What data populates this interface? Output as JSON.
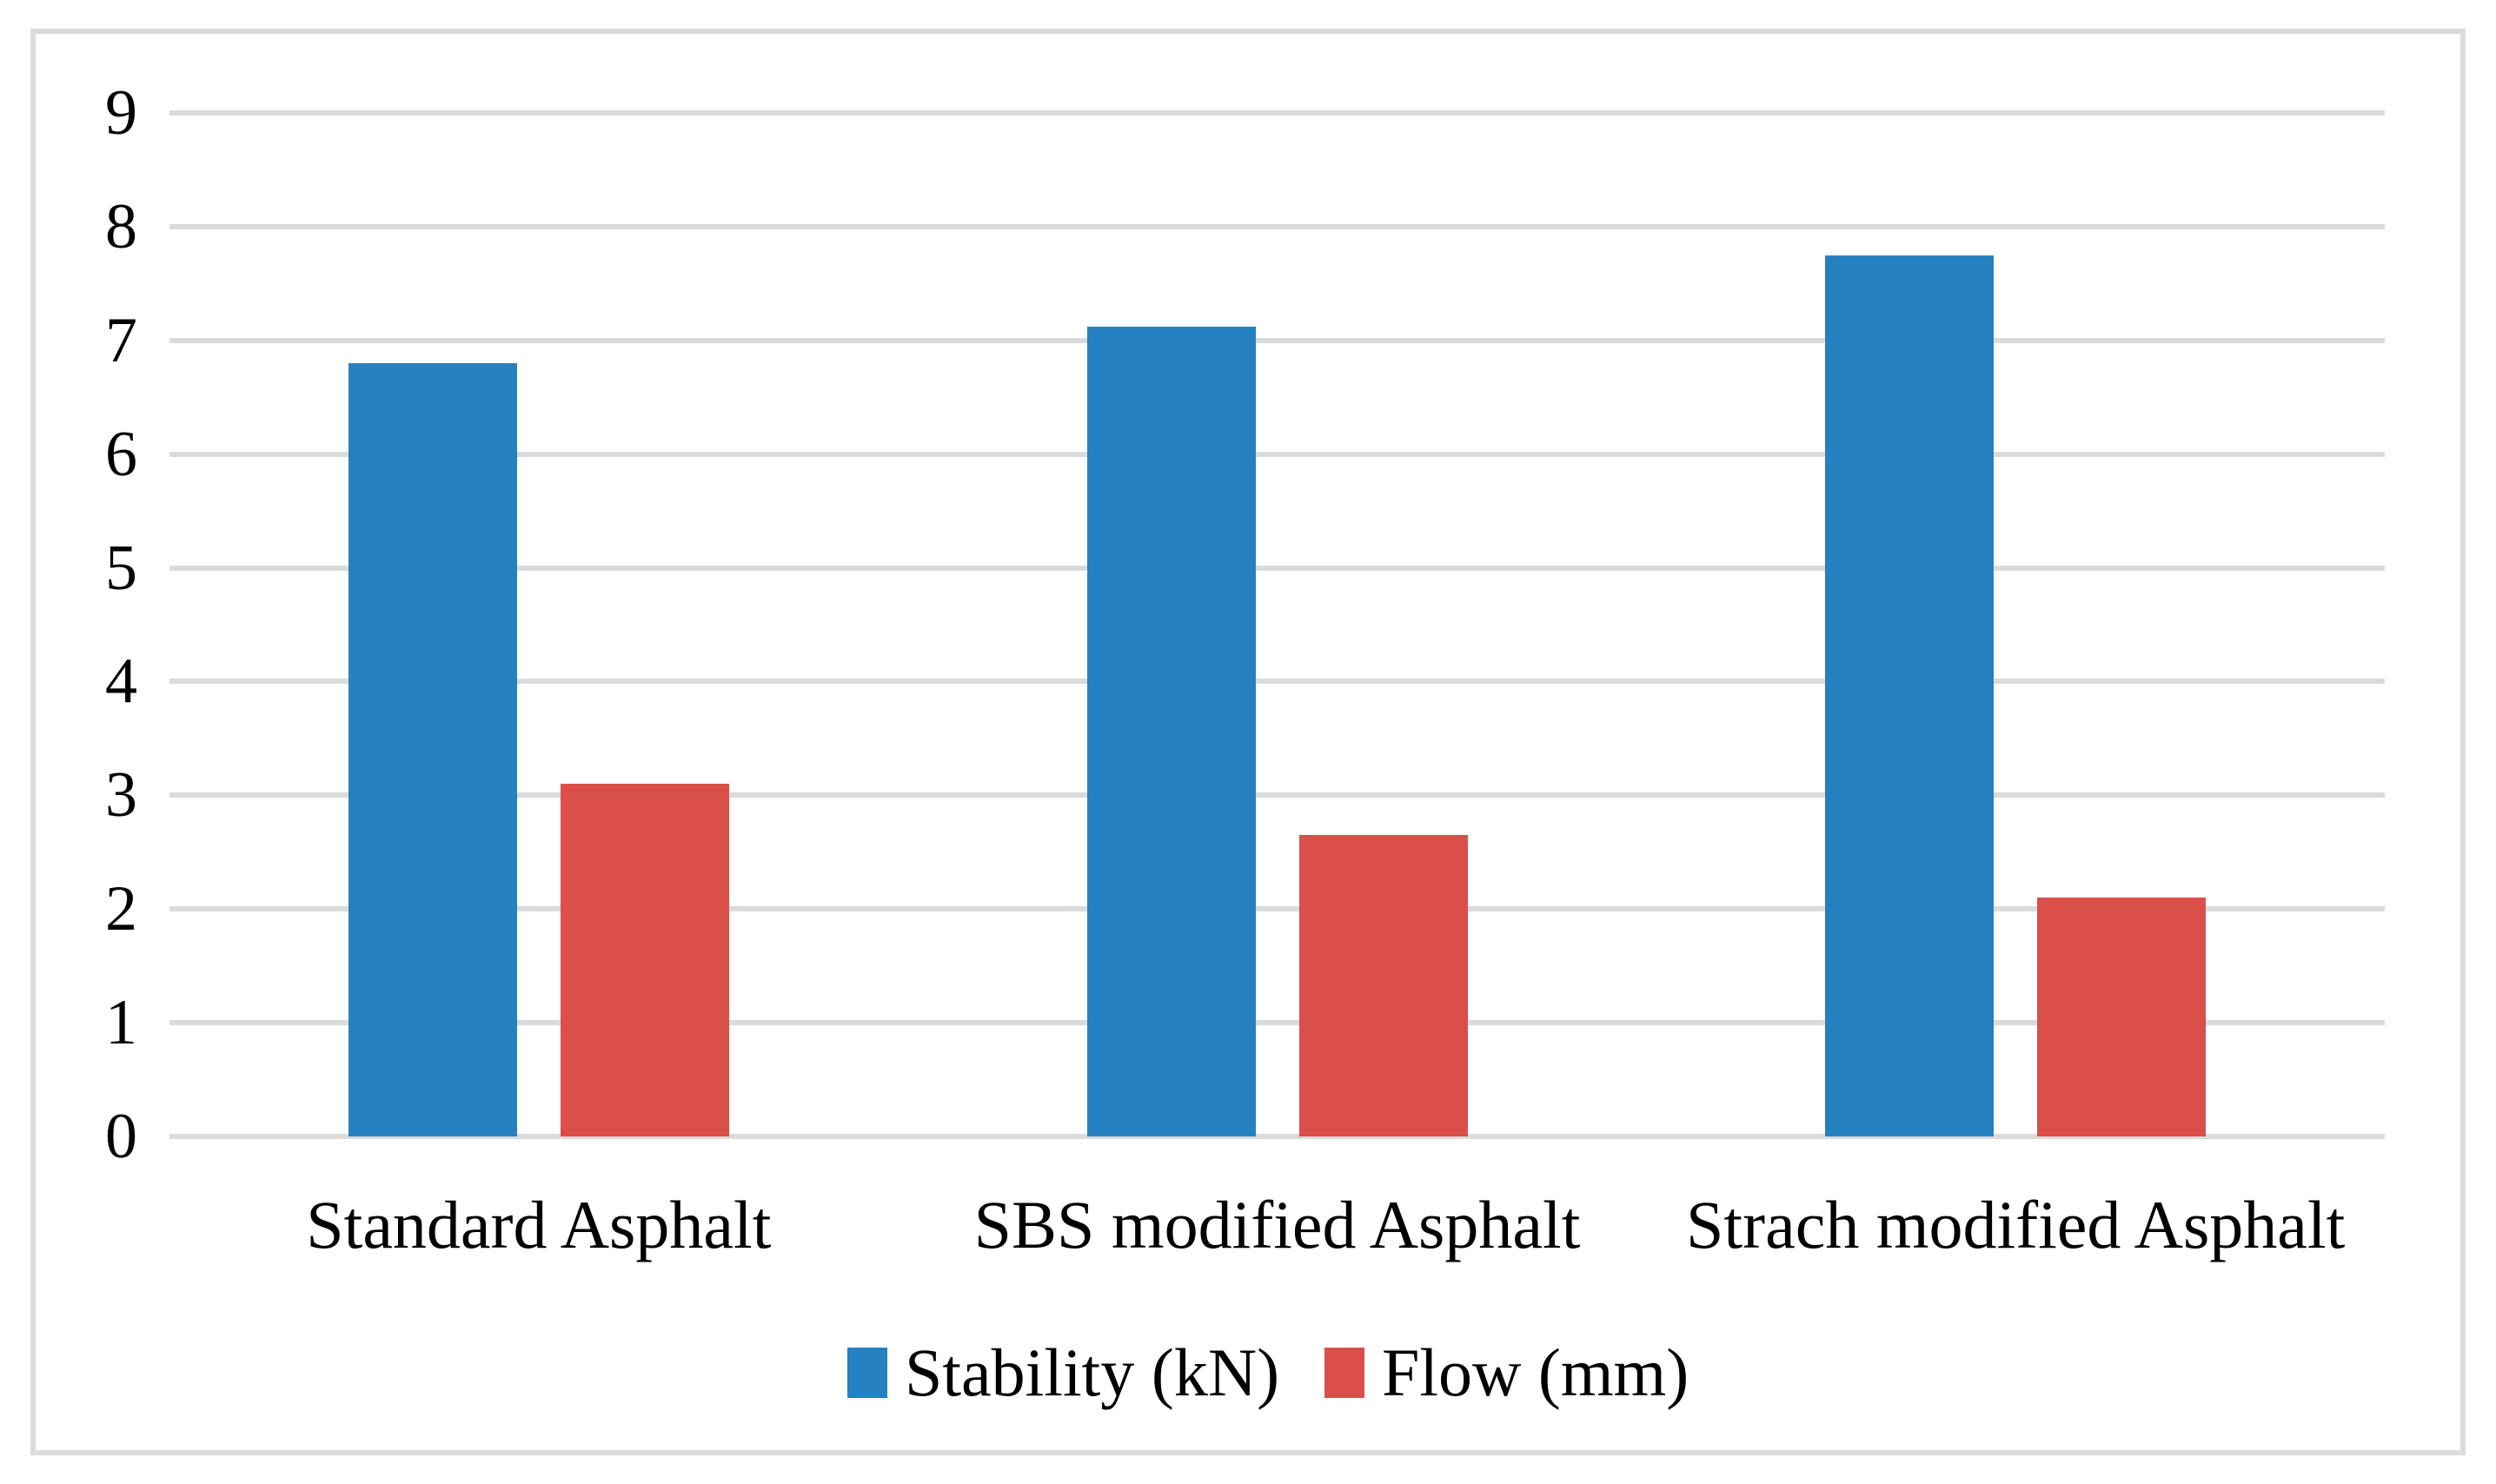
{
  "chart_data": {
    "type": "bar",
    "categories": [
      "Standard Asphalt",
      "SBS modified Asphalt",
      "Strach modified Asphalt"
    ],
    "series": [
      {
        "name": "Stability (kN)",
        "color": "#2581c0",
        "values": [
          6.8,
          7.12,
          7.75
        ]
      },
      {
        "name": "Flow (mm)",
        "color": "#db4f4b",
        "values": [
          3.1,
          2.65,
          2.1
        ]
      }
    ],
    "title": "",
    "xlabel": "",
    "ylabel": "",
    "ylim": [
      0,
      9
    ],
    "ytick_labels": [
      "0",
      "1",
      "2",
      "3",
      "4",
      "5",
      "6",
      "7",
      "8",
      "9"
    ],
    "grid": "horizontal",
    "gridline_color": "#dbdbdb",
    "frame_border_color": "#dbdbdb",
    "text_color": "#000000",
    "background_color": "#ffffff",
    "legend_position": "bottom"
  }
}
